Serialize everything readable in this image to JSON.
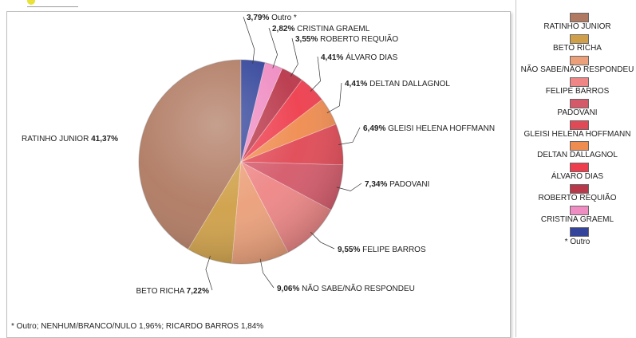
{
  "chart_data": {
    "type": "pie",
    "title": "",
    "slices": [
      {
        "label": "RATINHO JUNIOR",
        "value": 41.37,
        "display": "41,37%",
        "color": "#b07a62"
      },
      {
        "label": "BETO RICHA",
        "value": 7.22,
        "display": "7,22%",
        "color": "#cfa049"
      },
      {
        "label": "NÃO SABE/NÃO RESPONDEU",
        "value": 9.06,
        "display": "9,06%",
        "color": "#eba07a"
      },
      {
        "label": "FELIPE BARROS",
        "value": 9.55,
        "display": "9,55%",
        "color": "#ee8686"
      },
      {
        "label": "PADOVANI",
        "value": 7.34,
        "display": "7,34%",
        "color": "#d45a6a"
      },
      {
        "label": "GLEISI HELENA HOFFMANN",
        "value": 6.49,
        "display": "6,49%",
        "color": "#e04a56"
      },
      {
        "label": "DELTAN DALLAGNOL",
        "value": 4.41,
        "display": "4,41%",
        "color": "#ef8c50"
      },
      {
        "label": "ÁLVARO DIAS",
        "value": 4.41,
        "display": "4,41%",
        "color": "#ee3e4e"
      },
      {
        "label": "ROBERTO REQUIÃO",
        "value": 3.55,
        "display": "3,55%",
        "color": "#b9384a"
      },
      {
        "label": "CRISTINA GRAEML",
        "value": 2.82,
        "display": "2,82%",
        "color": "#ef8cc2"
      },
      {
        "label": "Outro *",
        "value": 3.79,
        "display": "3,79%",
        "color": "#33449a"
      }
    ],
    "legend": {
      "placement": "right",
      "entries": [
        "RATINHO JUNIOR",
        "BETO RICHA",
        "NÃO SABE/NÃO RESPONDEU",
        "FELIPE BARROS",
        "PADOVANI",
        "GLEISI HELENA HOFFMANN",
        "DELTAN DALLAGNOL",
        "ÁLVARO DIAS",
        "ROBERTO REQUIÃO",
        "CRISTINA GRAEML",
        "* Outro"
      ]
    },
    "footnote": "* Outro; NENHUM/BRANCO/NULO 1,96%; RICARDO BARROS 1,84%"
  }
}
